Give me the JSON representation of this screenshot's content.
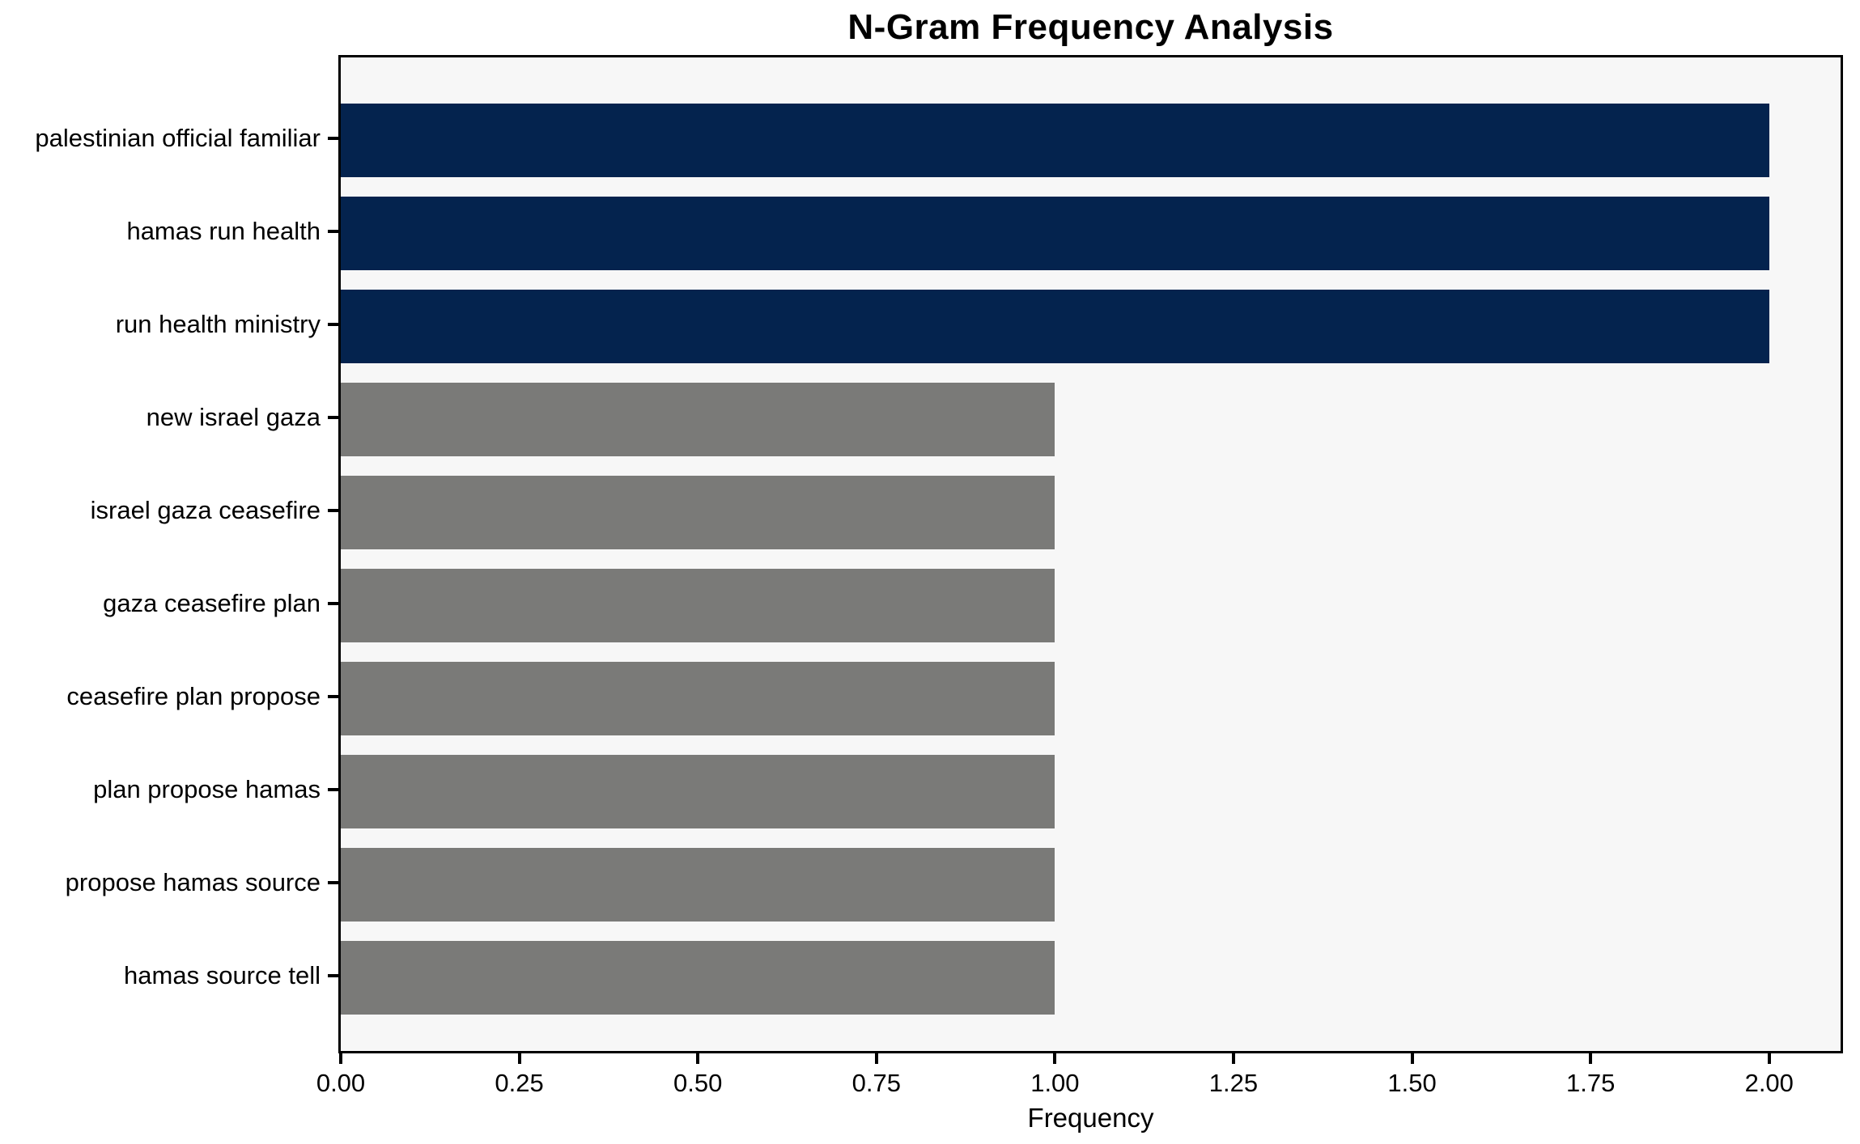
{
  "chart_data": {
    "type": "bar",
    "orientation": "horizontal",
    "title": "N-Gram Frequency Analysis",
    "xlabel": "Frequency",
    "ylabel": "",
    "categories": [
      "palestinian official familiar",
      "hamas run health",
      "run health ministry",
      "new israel gaza",
      "israel gaza ceasefire",
      "gaza ceasefire plan",
      "ceasefire plan propose",
      "plan propose hamas",
      "propose hamas source",
      "hamas source tell"
    ],
    "values": [
      2,
      2,
      2,
      1,
      1,
      1,
      1,
      1,
      1,
      1
    ],
    "bar_colors": [
      "#04234e",
      "#04234e",
      "#04234e",
      "#7a7a78",
      "#7a7a78",
      "#7a7a78",
      "#7a7a78",
      "#7a7a78",
      "#7a7a78",
      "#7a7a78"
    ],
    "xlim": [
      0,
      2.1
    ],
    "xticks": [
      {
        "value": 0.0,
        "label": "0.00"
      },
      {
        "value": 0.25,
        "label": "0.25"
      },
      {
        "value": 0.5,
        "label": "0.50"
      },
      {
        "value": 0.75,
        "label": "0.75"
      },
      {
        "value": 1.0,
        "label": "1.00"
      },
      {
        "value": 1.25,
        "label": "1.25"
      },
      {
        "value": 1.5,
        "label": "1.50"
      },
      {
        "value": 1.75,
        "label": "1.75"
      },
      {
        "value": 2.0,
        "label": "2.00"
      }
    ],
    "grid": false,
    "legend": false,
    "colors": {
      "highlight": "#04234e",
      "default_bar": "#7a7a78",
      "plot_background": "#f7f7f7",
      "figure_background": "#ffffff",
      "spine": "#000000",
      "text": "#000000"
    }
  }
}
